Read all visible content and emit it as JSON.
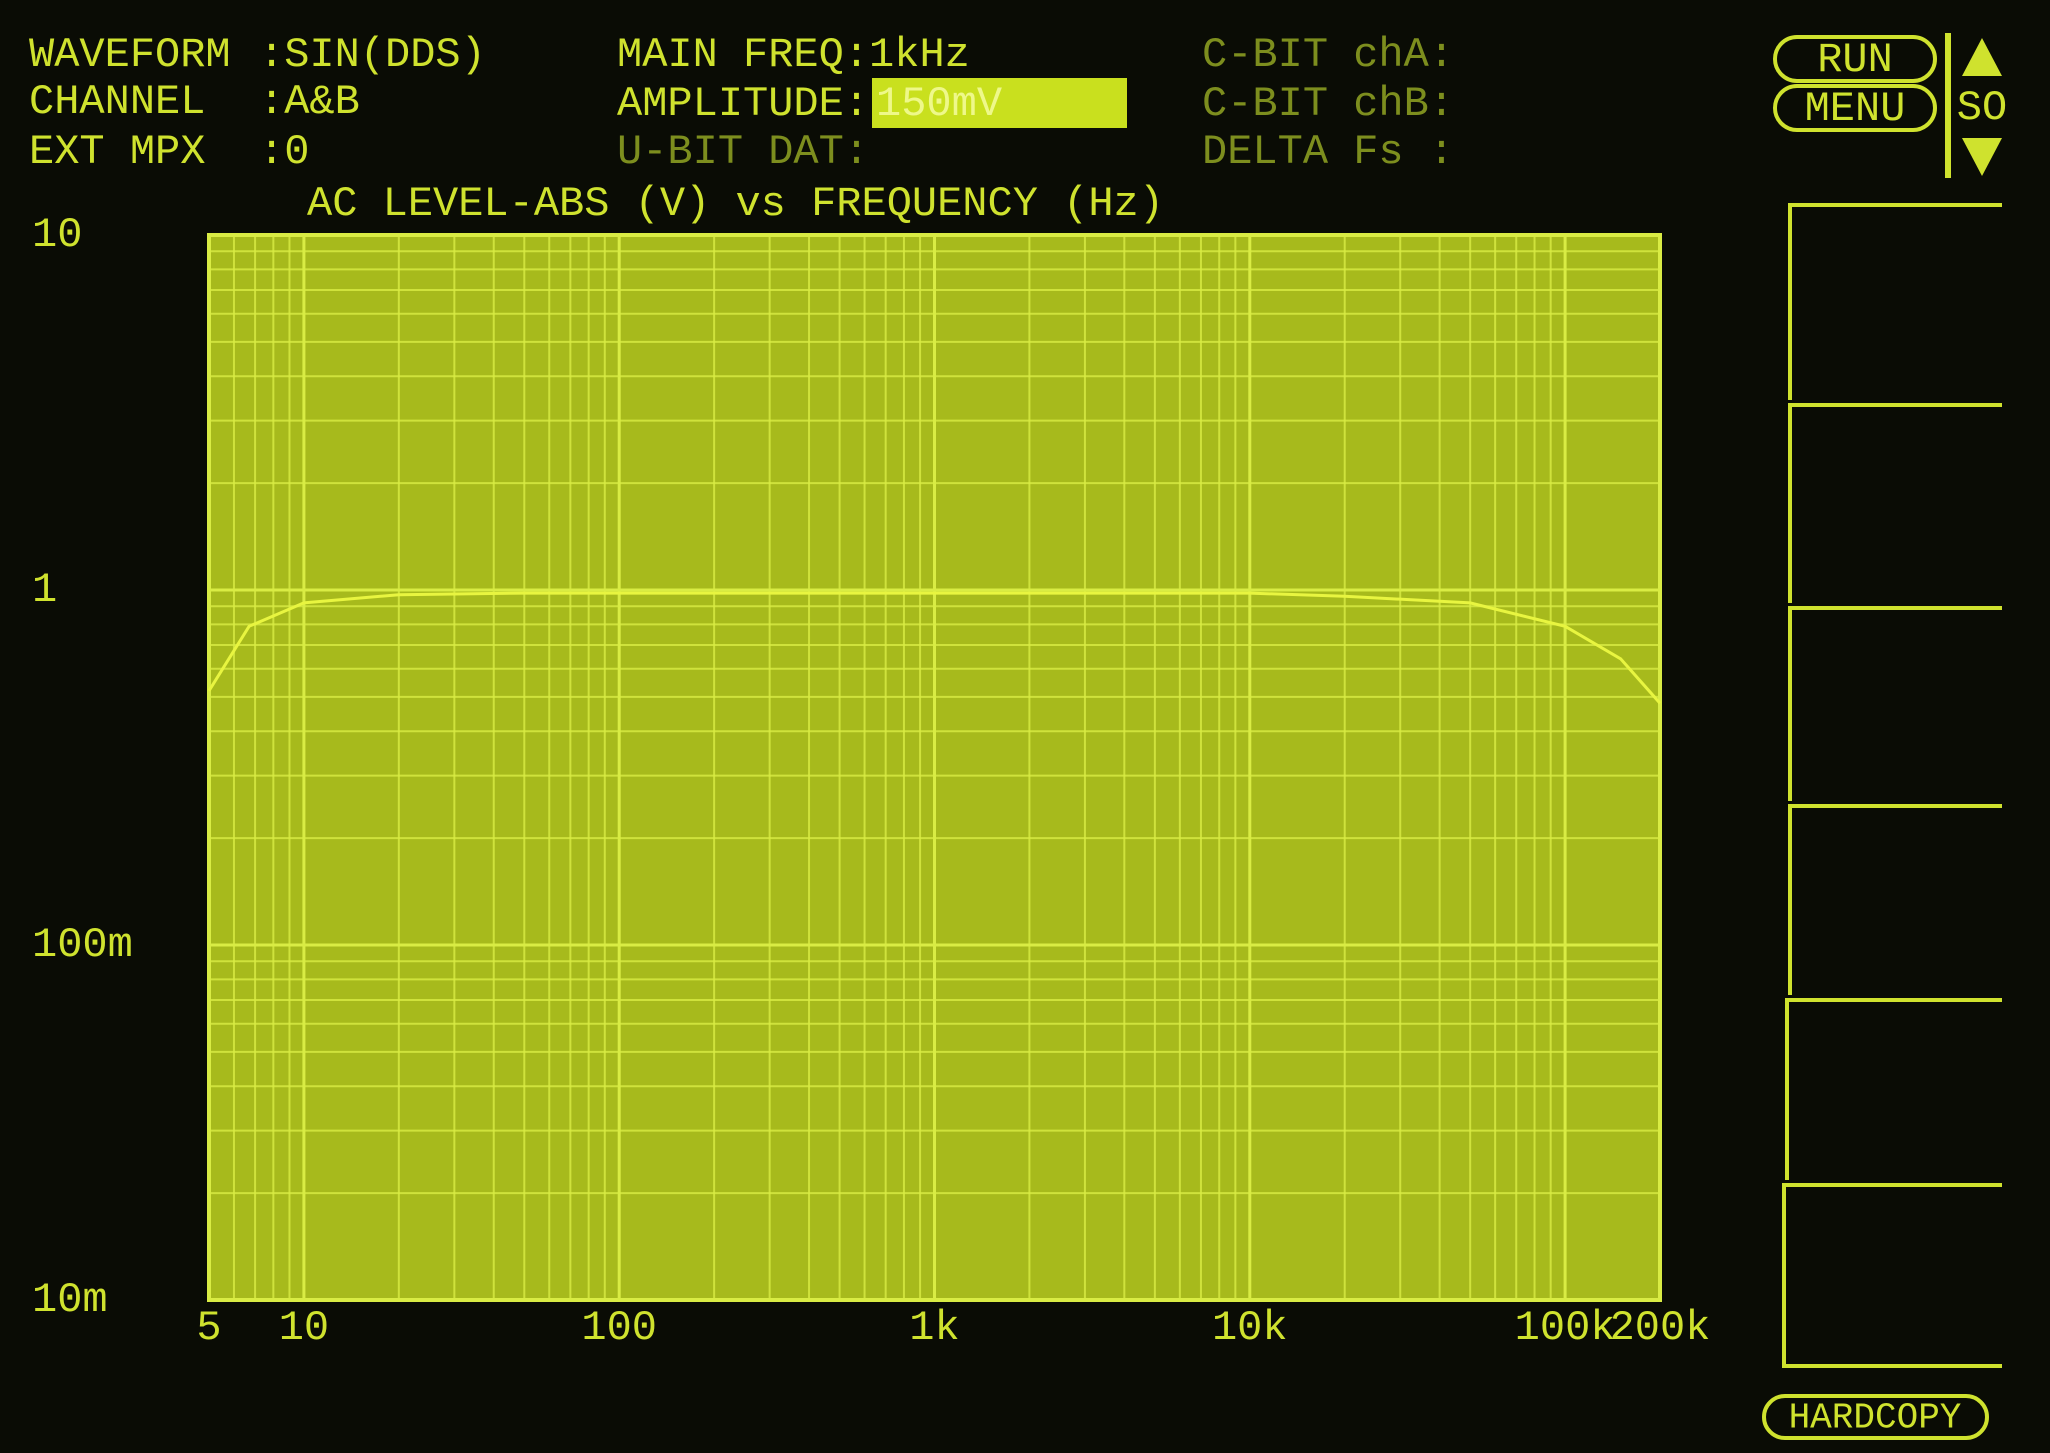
{
  "status": {
    "waveform_label": "WAVEFORM",
    "waveform_value": ":SIN(DDS)",
    "channel_label": "CHANNEL",
    "channel_value": ":A&B",
    "ext_mpx_label": "EXT MPX",
    "ext_mpx_value": ":0",
    "main_freq": "MAIN FREQ:1kHz",
    "amplitude_label": "AMPLITUDE:",
    "amplitude_value": "150mV",
    "u_bit": "U-BIT DAT:",
    "c_bit_a": "C-BIT chA:",
    "c_bit_b": "C-BIT chB:",
    "delta_fs": "DELTA Fs :"
  },
  "softkeys": {
    "run": "RUN",
    "menu": "MENU",
    "side": "SO",
    "hardcopy": "HARDCOPY"
  },
  "chart_data": {
    "type": "line",
    "title": "AC LEVEL-ABS (V) vs FREQUENCY (Hz)",
    "x": [
      5,
      6.7,
      10,
      20,
      50,
      100,
      1000,
      10000,
      20000,
      50000,
      100000,
      150000,
      200000
    ],
    "values": [
      0.52,
      0.79,
      0.92,
      0.97,
      0.98,
      0.98,
      0.98,
      0.98,
      0.96,
      0.92,
      0.79,
      0.64,
      0.48
    ],
    "color": "#e8f540",
    "xscale": "log",
    "yscale": "log",
    "grid": true,
    "xlim": [
      5,
      200000
    ],
    "xticks": [
      5,
      10,
      100,
      {
        "value": 1000,
        "label": "1k"
      },
      {
        "value": 10000,
        "label": "10k"
      },
      {
        "value": 100000,
        "label": "100k"
      },
      {
        "value": 200000,
        "label": "200k"
      }
    ],
    "ylim": [
      0.01,
      10
    ],
    "yticks": [
      {
        "value": 0.01,
        "label": "10m"
      },
      {
        "value": 0.1,
        "label": "100m"
      },
      1,
      10
    ]
  }
}
